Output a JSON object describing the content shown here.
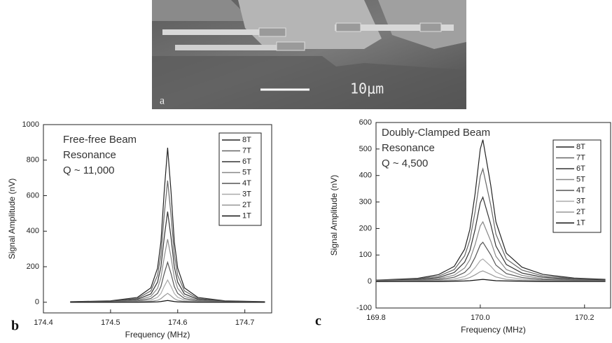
{
  "image": {
    "panel_label": "a",
    "scale_bar": "10μm"
  },
  "chart_data": [
    {
      "type": "line",
      "panel_label": "b",
      "annotation": [
        "Free-free Beam",
        "Resonance",
        "Q ~ 11,000"
      ],
      "x_label": "Frequency (MHz)",
      "y_label": "Signal Amplitude (nV)",
      "x": [
        174.44,
        174.5,
        174.54,
        174.56,
        174.57,
        174.575,
        174.58,
        174.585,
        174.59,
        174.595,
        174.6,
        174.61,
        174.63,
        174.67,
        174.73
      ],
      "series": [
        {
          "name": "8T",
          "color": "#222222",
          "values": [
            3,
            8,
            27,
            81,
            192,
            339,
            626,
            870,
            626,
            339,
            192,
            81,
            27,
            8,
            3
          ]
        },
        {
          "name": "7T",
          "color": "#666666",
          "values": [
            2,
            6,
            21,
            64,
            151,
            267,
            493,
            685,
            493,
            267,
            151,
            64,
            21,
            6,
            2
          ]
        },
        {
          "name": "6T",
          "color": "#333333",
          "values": [
            2,
            5,
            16,
            47,
            113,
            199,
            367,
            510,
            367,
            199,
            113,
            47,
            16,
            5,
            2
          ]
        },
        {
          "name": "5T",
          "color": "#888888",
          "values": [
            1,
            3,
            11,
            33,
            78,
            138,
            255,
            355,
            255,
            138,
            78,
            33,
            11,
            3,
            1
          ]
        },
        {
          "name": "4T",
          "color": "#555555",
          "values": [
            1,
            2,
            7,
            21,
            50,
            88,
            162,
            225,
            162,
            88,
            50,
            21,
            7,
            2,
            1
          ]
        },
        {
          "name": "3T",
          "color": "#aaaaaa",
          "values": [
            0,
            1,
            4,
            12,
            28,
            49,
            90,
            125,
            90,
            49,
            28,
            12,
            4,
            1,
            0
          ]
        },
        {
          "name": "2T",
          "color": "#999999",
          "values": [
            0,
            0,
            2,
            5,
            11,
            20,
            36,
            50,
            36,
            20,
            11,
            5,
            2,
            0,
            0
          ]
        },
        {
          "name": "1T",
          "color": "#111111",
          "values": [
            0,
            0,
            0,
            1,
            2,
            4,
            7,
            10,
            7,
            4,
            2,
            1,
            0,
            0,
            0
          ]
        }
      ],
      "xlim": [
        174.4,
        174.74
      ],
      "xticks": [
        174.4,
        174.5,
        174.6,
        174.7
      ],
      "ylim": [
        -60,
        1000
      ],
      "yticks": [
        0,
        200,
        400,
        600,
        800,
        1000
      ]
    },
    {
      "type": "line",
      "panel_label": "c",
      "annotation": [
        "Doubly-Clamped Beam",
        "Resonance",
        "Q ~ 4,500"
      ],
      "x_label": "Frequency (MHz)",
      "y_label": "Signal Amplitude (nV)",
      "x": [
        169.8,
        169.88,
        169.92,
        169.95,
        169.97,
        169.98,
        169.99,
        170.0,
        170.005,
        170.02,
        170.03,
        170.05,
        170.08,
        170.12,
        170.18,
        170.24
      ],
      "series": [
        {
          "name": "8T",
          "color": "#222222",
          "values": [
            5,
            12,
            26,
            57,
            122,
            196,
            330,
            500,
            535,
            364,
            225,
            107,
            54,
            27,
            13,
            8
          ]
        },
        {
          "name": "7T",
          "color": "#666666",
          "values": [
            4,
            10,
            20,
            45,
            97,
            156,
            262,
            397,
            425,
            289,
            179,
            85,
            43,
            21,
            11,
            6
          ]
        },
        {
          "name": "6T",
          "color": "#333333",
          "values": [
            3,
            7,
            15,
            34,
            73,
            116,
            196,
            297,
            318,
            216,
            134,
            64,
            32,
            16,
            8,
            5
          ]
        },
        {
          "name": "5T",
          "color": "#888888",
          "values": [
            2,
            5,
            11,
            24,
            51,
            82,
            139,
            210,
            225,
            153,
            95,
            45,
            23,
            11,
            6,
            3
          ]
        },
        {
          "name": "4T",
          "color": "#555555",
          "values": [
            1,
            3,
            7,
            16,
            34,
            54,
            91,
            138,
            148,
            101,
            62,
            30,
            15,
            7,
            4,
            2
          ]
        },
        {
          "name": "3T",
          "color": "#aaaaaa",
          "values": [
            1,
            2,
            4,
            9,
            19,
            31,
            52,
            79,
            85,
            58,
            36,
            17,
            9,
            4,
            2,
            1
          ]
        },
        {
          "name": "2T",
          "color": "#999999",
          "values": [
            0,
            1,
            2,
            4,
            9,
            15,
            25,
            37,
            40,
            27,
            17,
            8,
            4,
            2,
            1,
            1
          ]
        },
        {
          "name": "1T",
          "color": "#111111",
          "values": [
            0,
            0,
            0,
            1,
            2,
            3,
            5,
            7,
            8,
            5,
            3,
            2,
            1,
            0,
            0,
            0
          ]
        }
      ],
      "xlim": [
        169.8,
        170.25
      ],
      "xticks": [
        169.8,
        {
          "value": 170,
          "label": "170.0"
        },
        170.2
      ],
      "ylim": [
        -100,
        600
      ],
      "yticks": [
        -100,
        0,
        100,
        200,
        300,
        400,
        500,
        600
      ]
    }
  ]
}
